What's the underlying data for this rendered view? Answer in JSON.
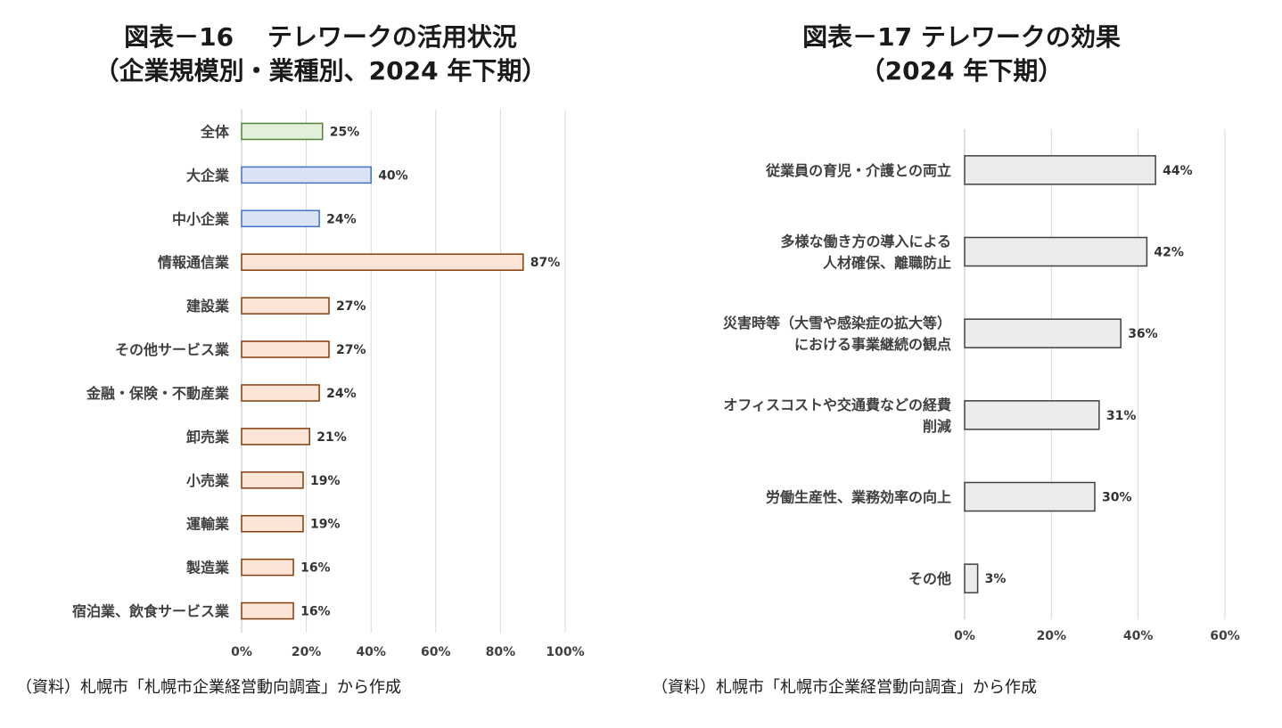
{
  "left": {
    "title_line1": "図表－16　 テレワークの活用状況",
    "title_line2": "（企業規模別・業種別、2024 年下期）",
    "source": "（資料）札幌市「札幌市企業経営動向調査」から作成"
  },
  "right": {
    "title_line1": "図表－17 テレワークの効果",
    "title_line2": "（2024 年下期）",
    "source": "（資料）札幌市「札幌市企業経営動向調査」から作成"
  },
  "colors": {
    "green_fill": "#e2efd9",
    "green_stroke": "#548235",
    "blue_fill": "#dae3f3",
    "blue_stroke": "#4472c4",
    "orange_fill": "#fbe5d6",
    "orange_stroke": "#843c0c",
    "gray_fill": "#ececec",
    "gray_stroke": "#404040",
    "grid": "#d9d9d9"
  },
  "chart_data": [
    {
      "type": "bar",
      "orientation": "horizontal",
      "title": "図表－16 テレワークの活用状況（企業規模別・業種別、2024 年下期）",
      "categories": [
        "全体",
        "大企業",
        "中小企業",
        "情報通信業",
        "建設業",
        "その他サービス業",
        "金融・保険・不動産業",
        "卸売業",
        "小売業",
        "運輸業",
        "製造業",
        "宿泊業、飲食サービス業"
      ],
      "values": [
        25,
        40,
        24,
        87,
        27,
        27,
        24,
        21,
        19,
        19,
        16,
        16
      ],
      "value_labels": [
        "25%",
        "40%",
        "24%",
        "87%",
        "27%",
        "27%",
        "24%",
        "21%",
        "19%",
        "19%",
        "16%",
        "16%"
      ],
      "color_groups": [
        "green",
        "blue",
        "blue",
        "orange",
        "orange",
        "orange",
        "orange",
        "orange",
        "orange",
        "orange",
        "orange",
        "orange"
      ],
      "xlim": [
        0,
        100
      ],
      "x_ticks": [
        "0%",
        "20%",
        "40%",
        "60%",
        "80%",
        "100%"
      ],
      "grid": true,
      "legend": "none"
    },
    {
      "type": "bar",
      "orientation": "horizontal",
      "title": "図表－17 テレワークの効果（2024 年下期）",
      "categories": [
        "従業員の育児・介護との両立",
        "多様な働き方の導入による\n人材確保、離職防止",
        "災害時等（大雪や感染症の拡大等）\nにおける事業継続の観点",
        "オフィスコストや交通費などの経費\n削減",
        "労働生産性、業務効率の向上",
        "その他"
      ],
      "values": [
        44,
        42,
        36,
        31,
        30,
        3
      ],
      "value_labels": [
        "44%",
        "42%",
        "36%",
        "31%",
        "30%",
        "3%"
      ],
      "color_groups": [
        "gray",
        "gray",
        "gray",
        "gray",
        "gray",
        "gray"
      ],
      "xlim": [
        0,
        60
      ],
      "x_ticks": [
        "0%",
        "20%",
        "40%",
        "60%"
      ],
      "grid": true,
      "legend": "none"
    }
  ]
}
